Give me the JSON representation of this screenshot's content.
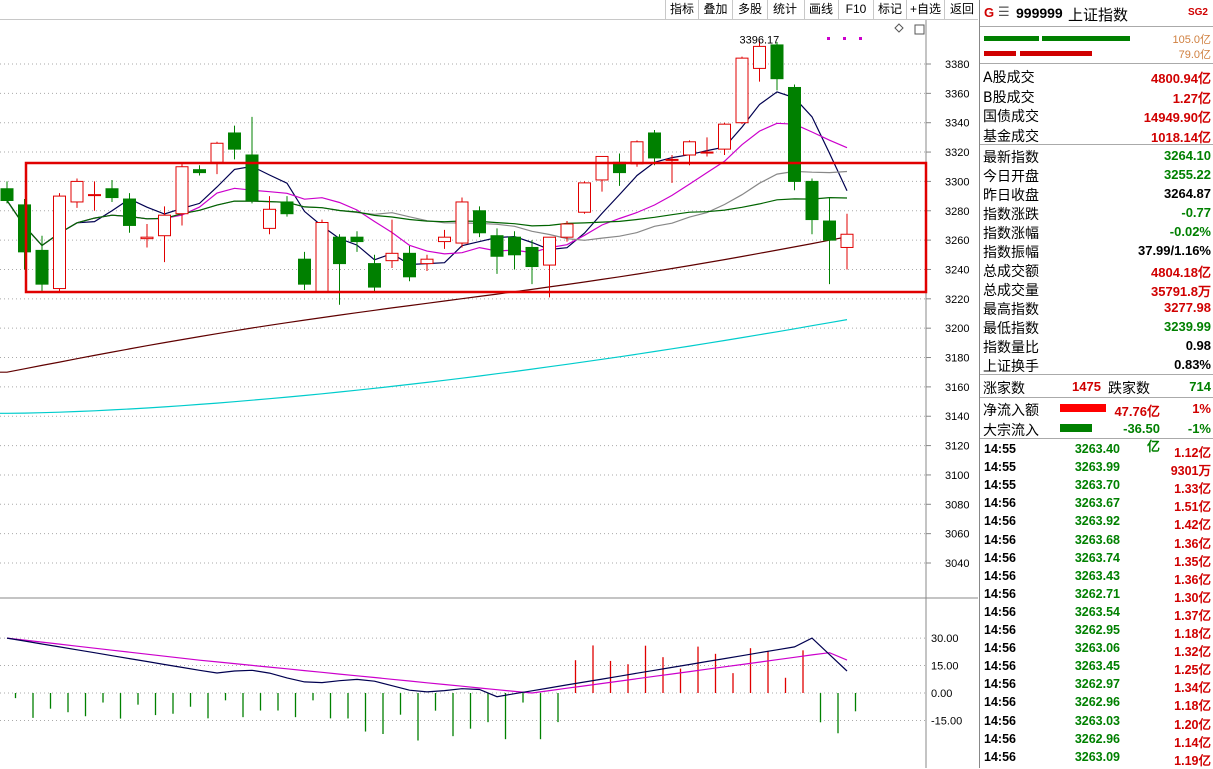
{
  "toolbar": {
    "buttons": [
      "指标",
      "叠加",
      "多股",
      "统计",
      "画线",
      "F10",
      "标记",
      "+自选",
      "返回"
    ]
  },
  "chart": {
    "peak_label": "3396.17",
    "y_axis": [
      "3380",
      "3360",
      "3340",
      "3320",
      "3300",
      "3280",
      "3260",
      "3240",
      "3220",
      "3200",
      "3180",
      "3160",
      "3140",
      "3120",
      "3100",
      "3080",
      "3060",
      "3040"
    ],
    "osc_axis": [
      "30.00",
      "15.00",
      "0.00",
      "-15.00"
    ]
  },
  "header": {
    "g_letter": "G",
    "menu_glyph": "☰",
    "code": "999999",
    "name": "上证指数",
    "badge": "SG2"
  },
  "bars": {
    "top_value": "105.0亿",
    "bottom_value": "79.0亿"
  },
  "turnover": [
    {
      "label": "A股成交",
      "value": "4800.94亿",
      "color": "red"
    },
    {
      "label": "B股成交",
      "value": "1.27亿",
      "color": "red"
    },
    {
      "label": "国债成交",
      "value": "14949.90亿",
      "color": "red"
    },
    {
      "label": "基金成交",
      "value": "1018.14亿",
      "color": "red"
    }
  ],
  "stats": [
    {
      "label": "最新指数",
      "value": "3264.10",
      "color": "green"
    },
    {
      "label": "今日开盘",
      "value": "3255.22",
      "color": "green"
    },
    {
      "label": "昨日收盘",
      "value": "3264.87",
      "color": "blk"
    },
    {
      "label": "指数涨跌",
      "value": "-0.77",
      "color": "green"
    },
    {
      "label": "指数涨幅",
      "value": "-0.02%",
      "color": "green"
    },
    {
      "label": "指数振幅",
      "value": "37.99/1.16%",
      "color": "blk"
    },
    {
      "label": "总成交额",
      "value": "4804.18亿",
      "color": "red"
    },
    {
      "label": "总成交量",
      "value": "35791.8万",
      "color": "red"
    },
    {
      "label": "最高指数",
      "value": "3277.98",
      "color": "red"
    },
    {
      "label": "最低指数",
      "value": "3239.99",
      "color": "green"
    },
    {
      "label": "指数量比",
      "value": "0.98",
      "color": "blk"
    },
    {
      "label": "上证换手",
      "value": "0.83%",
      "color": "blk"
    }
  ],
  "advance": {
    "up_label": "涨家数",
    "up": "1475",
    "down_label": "跌家数",
    "down": "714"
  },
  "flows": [
    {
      "label": "净流入额",
      "value": "47.76亿",
      "pct": "1%",
      "color": "red",
      "bar": "red"
    },
    {
      "label": "大宗流入",
      "value": "-36.50亿",
      "pct": "-1%",
      "color": "green",
      "bar": "green"
    }
  ],
  "ticks": [
    {
      "time": "14:55",
      "price": "3263.40",
      "vol": "1.12亿"
    },
    {
      "time": "14:55",
      "price": "3263.99",
      "vol": "9301万"
    },
    {
      "time": "14:55",
      "price": "3263.70",
      "vol": "1.33亿"
    },
    {
      "time": "14:56",
      "price": "3263.67",
      "vol": "1.51亿"
    },
    {
      "time": "14:56",
      "price": "3263.92",
      "vol": "1.42亿"
    },
    {
      "time": "14:56",
      "price": "3263.68",
      "vol": "1.36亿"
    },
    {
      "time": "14:56",
      "price": "3263.74",
      "vol": "1.35亿"
    },
    {
      "time": "14:56",
      "price": "3263.43",
      "vol": "1.36亿"
    },
    {
      "time": "14:56",
      "price": "3262.71",
      "vol": "1.30亿"
    },
    {
      "time": "14:56",
      "price": "3263.54",
      "vol": "1.37亿"
    },
    {
      "time": "14:56",
      "price": "3262.95",
      "vol": "1.18亿"
    },
    {
      "time": "14:56",
      "price": "3263.06",
      "vol": "1.32亿"
    },
    {
      "time": "14:56",
      "price": "3263.45",
      "vol": "1.25亿"
    },
    {
      "time": "14:56",
      "price": "3262.97",
      "vol": "1.34亿"
    },
    {
      "time": "14:56",
      "price": "3262.96",
      "vol": "1.18亿"
    },
    {
      "time": "14:56",
      "price": "3263.03",
      "vol": "1.20亿"
    },
    {
      "time": "14:56",
      "price": "3262.96",
      "vol": "1.14亿"
    },
    {
      "time": "14:56",
      "price": "3263.09",
      "vol": "1.19亿"
    }
  ],
  "chart_data": {
    "type": "candlestick",
    "candles": [
      {
        "o": 3295,
        "h": 3300,
        "l": 3285,
        "c": 3287
      },
      {
        "o": 3284,
        "h": 3288,
        "l": 3240,
        "c": 3252
      },
      {
        "o": 3253,
        "h": 3263,
        "l": 3225,
        "c": 3230
      },
      {
        "o": 3227,
        "h": 3292,
        "l": 3225,
        "c": 3290
      },
      {
        "o": 3286,
        "h": 3302,
        "l": 3282,
        "c": 3300
      },
      {
        "o": 3291,
        "h": 3300,
        "l": 3280,
        "c": 3291
      },
      {
        "o": 3295,
        "h": 3301,
        "l": 3286,
        "c": 3289
      },
      {
        "o": 3288,
        "h": 3292,
        "l": 3265,
        "c": 3270
      },
      {
        "o": 3261,
        "h": 3271,
        "l": 3255,
        "c": 3262
      },
      {
        "o": 3263,
        "h": 3283,
        "l": 3245,
        "c": 3277
      },
      {
        "o": 3278,
        "h": 3312,
        "l": 3270,
        "c": 3310
      },
      {
        "o": 3308,
        "h": 3311,
        "l": 3304,
        "c": 3306
      },
      {
        "o": 3313,
        "h": 3327,
        "l": 3305,
        "c": 3326
      },
      {
        "o": 3333,
        "h": 3338,
        "l": 3315,
        "c": 3322
      },
      {
        "o": 3318,
        "h": 3344,
        "l": 3285,
        "c": 3287
      },
      {
        "o": 3268,
        "h": 3290,
        "l": 3264,
        "c": 3281
      },
      {
        "o": 3286,
        "h": 3290,
        "l": 3276,
        "c": 3278
      },
      {
        "o": 3247,
        "h": 3252,
        "l": 3226,
        "c": 3230
      },
      {
        "o": 3225,
        "h": 3274,
        "l": 3224,
        "c": 3272
      },
      {
        "o": 3262,
        "h": 3264,
        "l": 3216,
        "c": 3244
      },
      {
        "o": 3262,
        "h": 3266,
        "l": 3252,
        "c": 3259
      },
      {
        "o": 3244,
        "h": 3250,
        "l": 3225,
        "c": 3228
      },
      {
        "o": 3246,
        "h": 3274,
        "l": 3241,
        "c": 3251
      },
      {
        "o": 3251,
        "h": 3256,
        "l": 3232,
        "c": 3235
      },
      {
        "o": 3244,
        "h": 3250,
        "l": 3239,
        "c": 3247
      },
      {
        "o": 3259,
        "h": 3267,
        "l": 3254,
        "c": 3262
      },
      {
        "o": 3258,
        "h": 3289,
        "l": 3255,
        "c": 3286
      },
      {
        "o": 3280,
        "h": 3283,
        "l": 3262,
        "c": 3265
      },
      {
        "o": 3263,
        "h": 3268,
        "l": 3237,
        "c": 3249
      },
      {
        "o": 3262,
        "h": 3266,
        "l": 3240,
        "c": 3250
      },
      {
        "o": 3255,
        "h": 3260,
        "l": 3230,
        "c": 3242
      },
      {
        "o": 3243,
        "h": 3262,
        "l": 3221,
        "c": 3262
      },
      {
        "o": 3262,
        "h": 3273,
        "l": 3259,
        "c": 3271
      },
      {
        "o": 3279,
        "h": 3300,
        "l": 3278,
        "c": 3299
      },
      {
        "o": 3301,
        "h": 3317,
        "l": 3293,
        "c": 3317
      },
      {
        "o": 3313,
        "h": 3319,
        "l": 3297,
        "c": 3306
      },
      {
        "o": 3312,
        "h": 3328,
        "l": 3310,
        "c": 3327
      },
      {
        "o": 3333,
        "h": 3335,
        "l": 3311,
        "c": 3316
      },
      {
        "o": 3315,
        "h": 3318,
        "l": 3299,
        "c": 3315
      },
      {
        "o": 3318,
        "h": 3328,
        "l": 3311,
        "c": 3327
      },
      {
        "o": 3320,
        "h": 3330,
        "l": 3317,
        "c": 3320
      },
      {
        "o": 3322,
        "h": 3340,
        "l": 3318,
        "c": 3339
      },
      {
        "o": 3340,
        "h": 3385,
        "l": 3339,
        "c": 3384
      },
      {
        "o": 3377,
        "h": 3396,
        "l": 3368,
        "c": 3392
      },
      {
        "o": 3393,
        "h": 3395,
        "l": 3362,
        "c": 3370
      },
      {
        "o": 3364,
        "h": 3366,
        "l": 3294,
        "c": 3300
      },
      {
        "o": 3300,
        "h": 3302,
        "l": 3264,
        "c": 3274
      },
      {
        "o": 3273,
        "h": 3289,
        "l": 3230,
        "c": 3260
      },
      {
        "o": 3255,
        "h": 3278,
        "l": 3240,
        "c": 3264
      }
    ],
    "price_range": [
      3030,
      3400
    ],
    "annotation": "3396.17"
  }
}
